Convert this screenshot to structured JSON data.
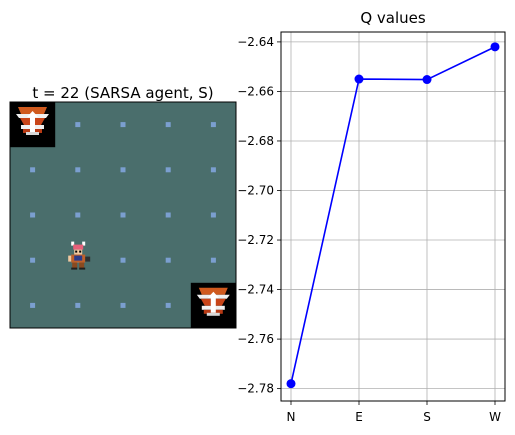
{
  "left_panel": {
    "title": "t = 22 (SARSA agent, S)",
    "grid": {
      "rows": 5,
      "cols": 5
    },
    "board_color": "#4a6e6c",
    "dot_color": "#7b9fd0",
    "agent": {
      "row": 3,
      "col": 1,
      "icon": "knight-sprite-icon"
    },
    "goals": [
      {
        "row": 0,
        "col": 0,
        "icon": "trophy-tile-icon"
      },
      {
        "row": 4,
        "col": 4,
        "icon": "trophy-tile-icon"
      }
    ]
  },
  "chart_data": {
    "type": "line",
    "title": "Q values",
    "categories": [
      "N",
      "E",
      "S",
      "W"
    ],
    "values": [
      -2.778,
      -2.655,
      -2.6552,
      -2.642
    ],
    "ylim": [
      -2.785,
      -2.636
    ],
    "yticks": [
      -2.64,
      -2.66,
      -2.68,
      -2.7,
      -2.72,
      -2.74,
      -2.76,
      -2.78
    ],
    "ytick_labels": [
      "−2.64",
      "−2.66",
      "−2.68",
      "−2.70",
      "−2.72",
      "−2.74",
      "−2.76",
      "−2.78"
    ],
    "grid": true,
    "color": "#0000ff",
    "marker": "circle"
  }
}
